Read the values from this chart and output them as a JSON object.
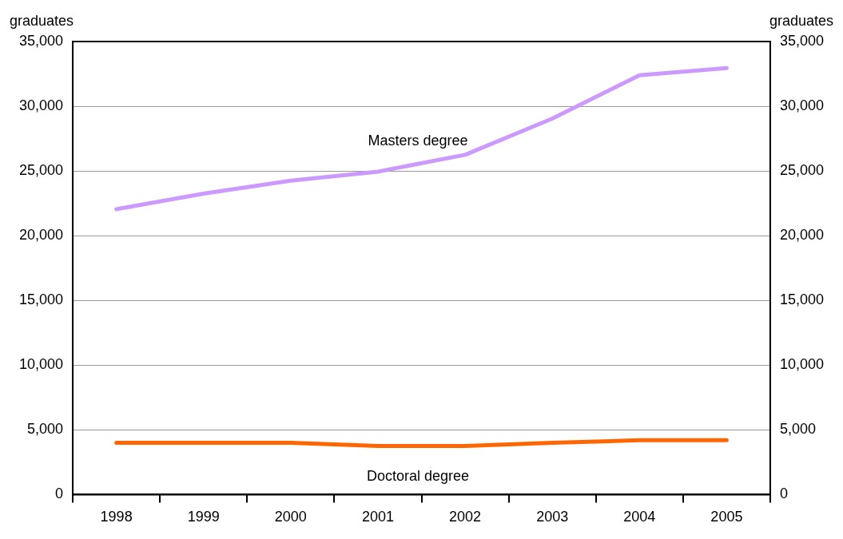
{
  "chart_data": {
    "type": "line",
    "ylabel": "graduates",
    "y2label": "graduates",
    "categories": [
      "1998",
      "1999",
      "2000",
      "2001",
      "2002",
      "2003",
      "2004",
      "2005"
    ],
    "series": [
      {
        "name": "Masters degree",
        "color": "#cc99ff",
        "values": [
          22050,
          23250,
          24250,
          24950,
          26250,
          29050,
          32400,
          32950
        ]
      },
      {
        "name": "Doctoral degree",
        "color": "#ff6600",
        "values": [
          4000,
          4000,
          4000,
          3750,
          3750,
          4000,
          4200,
          4200
        ]
      }
    ],
    "ylim": [
      0,
      35000
    ],
    "yticks": [
      0,
      {
        "value": 5000,
        "label": "5,000"
      },
      {
        "value": 10000,
        "label": "10,000"
      },
      {
        "value": 15000,
        "label": "15,000"
      },
      {
        "value": 20000,
        "label": "20,000"
      },
      {
        "value": 25000,
        "label": "25,000"
      },
      {
        "value": 30000,
        "label": "30,000"
      },
      {
        "value": 35000,
        "label": "35,000"
      }
    ],
    "y2lim": [
      0,
      35000
    ],
    "y2ticks": [
      0,
      {
        "value": 5000,
        "label": "5,000"
      },
      {
        "value": 10000,
        "label": "10,000"
      },
      {
        "value": 15000,
        "label": "15,000"
      },
      {
        "value": 20000,
        "label": "20,000"
      },
      {
        "value": 25000,
        "label": "25,000"
      },
      {
        "value": 30000,
        "label": "30,000"
      },
      {
        "value": 35000,
        "label": "35,000"
      }
    ],
    "grid": "y",
    "legend": false,
    "marker": "none",
    "line_style": "solid"
  }
}
